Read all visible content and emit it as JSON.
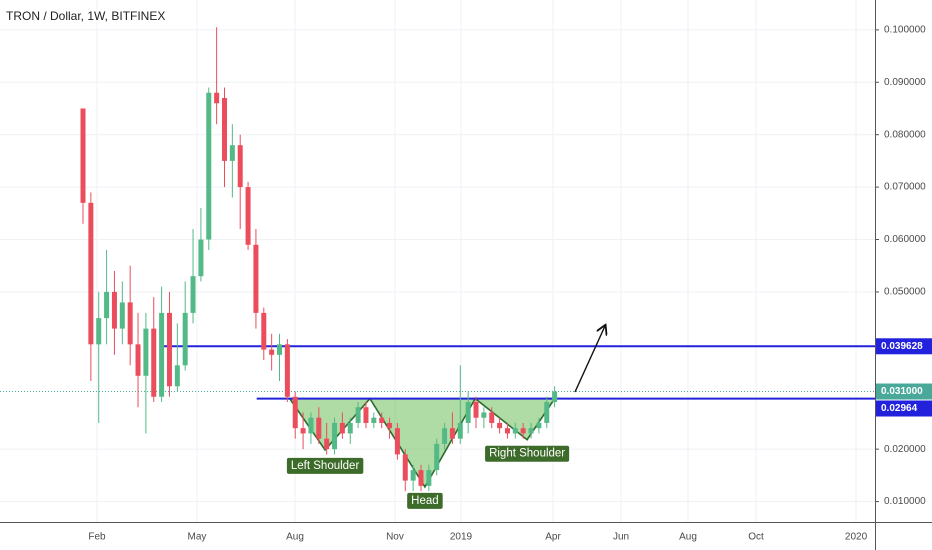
{
  "chart_data": {
    "type": "candlestick",
    "title": "TRON / Dollar, 1W, BITFINEX",
    "up_color": "#53b987",
    "down_color": "#eb4d5c",
    "open": [
      0.085,
      0.067,
      0.04,
      0.045,
      0.05,
      0.043,
      0.048,
      0.04,
      0.034,
      0.043,
      0.03,
      0.046,
      0.032,
      0.036,
      0.046,
      0.053,
      0.06,
      0.088,
      0.087,
      0.075,
      0.078,
      0.07,
      0.059,
      0.046,
      0.039,
      0.038,
      0.04,
      0.03,
      0.024,
      0.023,
      0.026,
      0.022,
      0.02,
      0.025,
      0.023,
      0.025,
      0.028,
      0.025,
      0.026,
      0.025,
      0.024,
      0.019,
      0.014,
      0.016,
      0.013,
      0.016,
      0.021,
      0.024,
      0.022,
      0.025,
      0.029,
      0.026,
      0.027,
      0.025,
      0.024,
      0.023,
      0.024,
      0.023,
      0.024,
      0.025,
      0.029
    ],
    "high": [
      0.085,
      0.069,
      0.05,
      0.058,
      0.054,
      0.052,
      0.055,
      0.046,
      0.046,
      0.049,
      0.051,
      0.05,
      0.044,
      0.052,
      0.062,
      0.066,
      0.089,
      0.1005,
      0.089,
      0.082,
      0.08,
      0.071,
      0.062,
      0.047,
      0.042,
      0.042,
      0.041,
      0.031,
      0.027,
      0.027,
      0.028,
      0.025,
      0.026,
      0.027,
      0.026,
      0.029,
      0.029,
      0.027,
      0.027,
      0.026,
      0.025,
      0.02,
      0.017,
      0.017,
      0.017,
      0.022,
      0.025,
      0.027,
      0.036,
      0.031,
      0.03,
      0.028,
      0.028,
      0.026,
      0.025,
      0.025,
      0.025,
      0.025,
      0.026,
      0.03,
      0.032
    ],
    "low": [
      0.063,
      0.033,
      0.025,
      0.04,
      0.038,
      0.04,
      0.036,
      0.028,
      0.023,
      0.029,
      0.029,
      0.03,
      0.031,
      0.035,
      0.044,
      0.052,
      0.058,
      0.082,
      0.07,
      0.068,
      0.062,
      0.058,
      0.043,
      0.037,
      0.035,
      0.033,
      0.029,
      0.022,
      0.02,
      0.021,
      0.021,
      0.019,
      0.019,
      0.022,
      0.021,
      0.024,
      0.024,
      0.024,
      0.024,
      0.022,
      0.018,
      0.012,
      0.012,
      0.012,
      0.012,
      0.015,
      0.02,
      0.021,
      0.021,
      0.023,
      0.024,
      0.024,
      0.024,
      0.023,
      0.022,
      0.022,
      0.022,
      0.022,
      0.023,
      0.024,
      0.028
    ],
    "close": [
      0.067,
      0.04,
      0.045,
      0.05,
      0.043,
      0.048,
      0.04,
      0.034,
      0.043,
      0.03,
      0.046,
      0.032,
      0.036,
      0.046,
      0.053,
      0.06,
      0.088,
      0.086,
      0.075,
      0.078,
      0.07,
      0.059,
      0.046,
      0.039,
      0.038,
      0.04,
      0.03,
      0.024,
      0.023,
      0.026,
      0.022,
      0.02,
      0.025,
      0.023,
      0.025,
      0.028,
      0.025,
      0.026,
      0.025,
      0.024,
      0.019,
      0.014,
      0.016,
      0.013,
      0.016,
      0.021,
      0.024,
      0.022,
      0.025,
      0.029,
      0.026,
      0.027,
      0.025,
      0.024,
      0.023,
      0.024,
      0.023,
      0.024,
      0.025,
      0.029,
      0.031
    ],
    "xlim": [
      -10.56,
      100.76
    ],
    "xticks": [
      {
        "value": 1.78,
        "label": "Feb"
      },
      {
        "value": 14.5,
        "label": "May"
      },
      {
        "value": 26.97,
        "label": "Aug"
      },
      {
        "value": 39.69,
        "label": "Nov"
      },
      {
        "value": 48.09,
        "label": "2019"
      },
      {
        "value": 59.8,
        "label": "Apr"
      },
      {
        "value": 68.45,
        "label": "Jun"
      },
      {
        "value": 76.97,
        "label": "Aug"
      },
      {
        "value": 85.62,
        "label": "Oct"
      },
      {
        "value": 98.35,
        "label": "2020"
      }
    ],
    "ylim": [
      0.0061,
      0.1057
    ],
    "yticks": [
      {
        "value": 0.01,
        "label": "0.010000"
      },
      {
        "value": 0.02,
        "label": "0.020000"
      },
      {
        "value": 0.05,
        "label": "0.050000"
      },
      {
        "value": 0.06,
        "label": "0.060000"
      },
      {
        "value": 0.07,
        "label": "0.070000"
      },
      {
        "value": 0.08,
        "label": "0.080000"
      },
      {
        "value": 0.09,
        "label": "0.090000"
      },
      {
        "value": 0.1,
        "label": "0.100000"
      }
    ],
    "grid": true,
    "levels": [
      {
        "value": 0.039628,
        "start": 9.8,
        "color": "#2222dd"
      },
      {
        "value": 0.02964,
        "start": 22.1,
        "color": "#2222dd"
      }
    ],
    "last_price": {
      "value": 0.031,
      "label": "0.031000",
      "color": "#4aa89a"
    },
    "pattern": {
      "x": [
        26.3,
        30.8,
        36.5,
        43.5,
        49.9,
        56.5,
        60.0
      ],
      "y": [
        0.02964,
        0.01985,
        0.02964,
        0.0128,
        0.02964,
        0.0218,
        0.02964
      ],
      "labels": [
        "Left Shoulder",
        "Head",
        "Right Shoulder"
      ]
    }
  }
}
